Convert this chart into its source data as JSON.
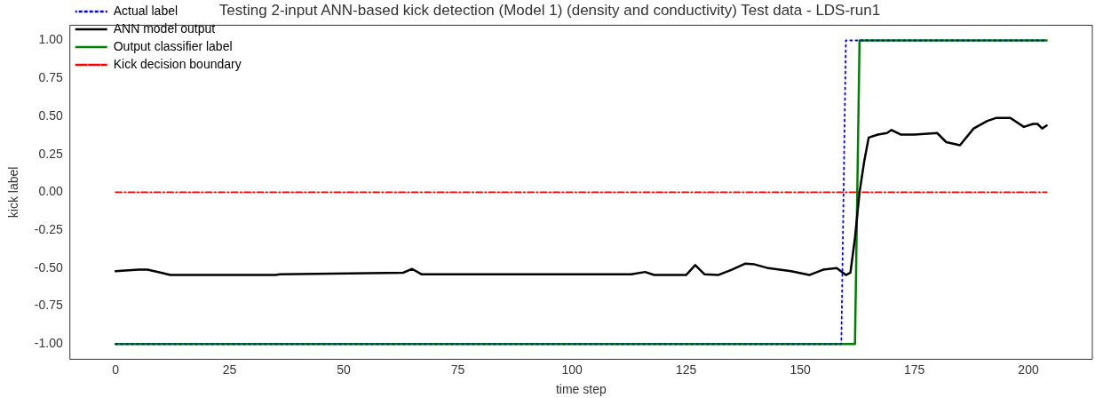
{
  "chart_data": {
    "type": "line",
    "title": "Testing 2-input ANN-based kick detection (Model 1) (density and conductivity) Test data - LDS-run1",
    "xlabel": "time step",
    "ylabel": "kick label",
    "series": [
      {
        "name": "Actual label",
        "color": "#0000ff",
        "line_style": "dotted",
        "x": [
          0,
          159,
          160,
          204
        ],
        "values": [
          -1,
          -1,
          1,
          1
        ]
      },
      {
        "name": "ANN model output",
        "color": "#000000",
        "line_style": "solid",
        "x": [
          0,
          5,
          7,
          10,
          12,
          35,
          36,
          63,
          65,
          67,
          113,
          116,
          118,
          125,
          127,
          129,
          132,
          135,
          138,
          140,
          143,
          148,
          152,
          155,
          158,
          160,
          161,
          162,
          163,
          164,
          165,
          167,
          169,
          170,
          172,
          175,
          180,
          182,
          185,
          188,
          191,
          193,
          196,
          197,
          199,
          201,
          202,
          203,
          204
        ],
        "values": [
          -0.52,
          -0.51,
          -0.51,
          -0.53,
          -0.545,
          -0.545,
          -0.54,
          -0.53,
          -0.505,
          -0.54,
          -0.54,
          -0.525,
          -0.545,
          -0.545,
          -0.48,
          -0.54,
          -0.545,
          -0.51,
          -0.47,
          -0.475,
          -0.5,
          -0.52,
          -0.545,
          -0.51,
          -0.5,
          -0.545,
          -0.53,
          -0.3,
          0.0,
          0.2,
          0.36,
          0.38,
          0.39,
          0.41,
          0.38,
          0.38,
          0.39,
          0.33,
          0.31,
          0.42,
          0.47,
          0.49,
          0.49,
          0.47,
          0.43,
          0.45,
          0.45,
          0.42,
          0.44
        ]
      },
      {
        "name": "Output classifier label",
        "color": "#008000",
        "line_style": "solid",
        "x": [
          0,
          162,
          163,
          204
        ],
        "values": [
          -1,
          -1,
          1,
          1
        ]
      },
      {
        "name": "Kick decision boundary",
        "color": "#ff0000",
        "line_style": "dashed",
        "x": [
          0,
          204
        ],
        "values": [
          0,
          0
        ]
      }
    ],
    "xlim": [
      -10,
      214
    ],
    "xticks": [
      0,
      25,
      50,
      75,
      100,
      125,
      150,
      175,
      200
    ],
    "ylim": [
      -1.1,
      1.1
    ],
    "yticks": [
      {
        "value": -1,
        "label": "-1.00"
      },
      {
        "value": -0.75,
        "label": "-0.75"
      },
      {
        "value": -0.5,
        "label": "-0.50"
      },
      {
        "value": -0.25,
        "label": "-0.25"
      },
      {
        "value": 0,
        "label": "0.00"
      },
      {
        "value": 0.25,
        "label": "0.25"
      },
      {
        "value": 0.5,
        "label": "0.50"
      },
      {
        "value": 0.75,
        "label": "0.75"
      },
      {
        "value": 1,
        "label": "1.00"
      }
    ],
    "grid": false,
    "legend": "top left",
    "marker": "none"
  }
}
